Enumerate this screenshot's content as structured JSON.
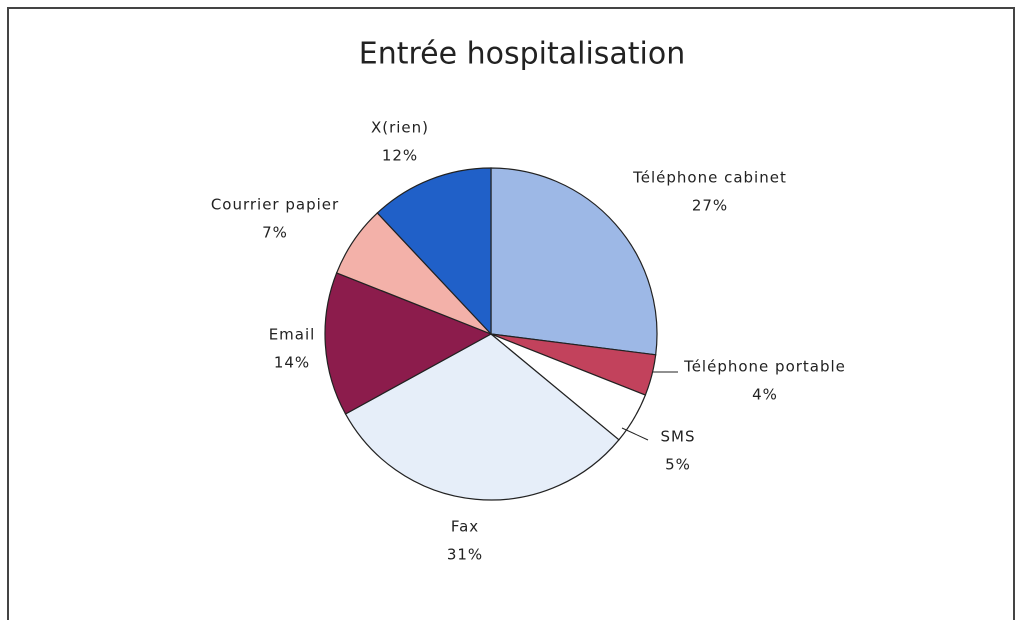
{
  "chart_data": {
    "type": "pie",
    "title": "Entrée hospitalisation",
    "categories": [
      "Téléphone cabinet",
      "Téléphone portable",
      "SMS",
      "Fax",
      "Email",
      "Courrier papier",
      "X(rien)"
    ],
    "values": [
      27,
      4,
      5,
      31,
      14,
      7,
      12
    ],
    "value_labels": [
      "27%",
      "4%",
      "5%",
      "31%",
      "14%",
      "7%",
      "12%"
    ],
    "colors": [
      "#9db8e6",
      "#c2425c",
      "#ffffff",
      "#e6eef9",
      "#8c1c4c",
      "#f3b1a9",
      "#2060c8"
    ]
  }
}
